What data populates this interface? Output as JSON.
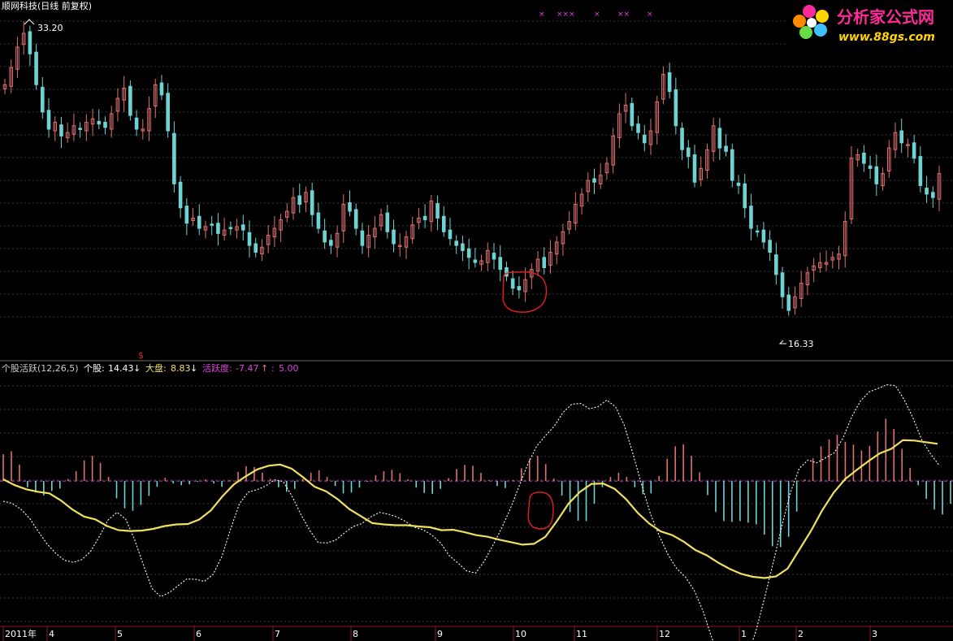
{
  "colors": {
    "background": "#000000",
    "up": "#e07070",
    "down": "#6fd3d3",
    "grid": "#3a3a3a",
    "yellow_line": "#f0e060",
    "dashed_line": "#ffffff",
    "zero_line": "#c040c0",
    "annotation_circle": "#e02020",
    "logo_magenta": "#ff2a9a",
    "logo_yellow": "#ffd400"
  },
  "chart_data": [
    {
      "type": "candlestick",
      "title": "顺网科技(日线 前复权)",
      "high_label": "33.20",
      "low_label": "16.33",
      "markers": [
        "×",
        "×××",
        "×",
        "××",
        "×"
      ],
      "ylim": [
        15,
        34
      ],
      "grid": true,
      "close": [
        30.0,
        31.0,
        32.2,
        33.0,
        31.8,
        30.0,
        28.4,
        27.4,
        27.8,
        27.0,
        27.2,
        27.6,
        27.4,
        27.8,
        28.0,
        27.7,
        27.5,
        28.3,
        29.2,
        29.8,
        28.2,
        27.4,
        27.4,
        28.6,
        30.0,
        29.4,
        27.3,
        24.2,
        22.8,
        21.9,
        22.2,
        21.6,
        21.7,
        21.8,
        21.3,
        21.5,
        21.6,
        21.7,
        21.5,
        20.6,
        20.2,
        20.5,
        21.2,
        21.6,
        22.1,
        22.6,
        23.4,
        23.0,
        23.7,
        22.4,
        21.6,
        20.8,
        20.6,
        21.3,
        23.0,
        22.6,
        21.6,
        20.6,
        21.2,
        21.6,
        22.4,
        21.4,
        20.7,
        20.6,
        21.1,
        21.8,
        22.2,
        22.1,
        23.2,
        22.2,
        21.4,
        21.0,
        20.6,
        20.3,
        19.9,
        19.6,
        19.7,
        20.3,
        19.8,
        19.2,
        18.8,
        18.1,
        18.0,
        18.6,
        19.2,
        19.8,
        19.3,
        20.2,
        20.8,
        21.4,
        22.0,
        23.0,
        23.6,
        24.4,
        24.3,
        24.7,
        25.4,
        27.0,
        28.3,
        28.8,
        27.6,
        27.2,
        26.6,
        27.3,
        29.0,
        30.6,
        29.6,
        27.6,
        26.2,
        25.8,
        24.3,
        25.1,
        26.2,
        27.6,
        26.3,
        26.1,
        24.4,
        24.1,
        22.8,
        21.6,
        21.4,
        20.8,
        20.2,
        18.9,
        17.6,
        16.8,
        17.6,
        18.4,
        19.0,
        19.4,
        19.6,
        19.6,
        19.9,
        20.1,
        22.0,
        25.7,
        25.9,
        25.4,
        25.1,
        24.2,
        24.8,
        26.3,
        27.2,
        26.6,
        26.5,
        25.7,
        24.1,
        23.6,
        23.4,
        24.8
      ],
      "xlabel_ticks": [
        "2011年",
        "4",
        "5",
        "6",
        "7",
        "8",
        "9",
        "10",
        "11",
        "12",
        "1",
        "2",
        "3"
      ]
    },
    {
      "type": "indicator",
      "title": "个股活跃(12,26,5)",
      "legend": [
        {
          "label": "个股:",
          "value": "14.43",
          "arrow": "↓",
          "color": "#ffffff"
        },
        {
          "label": "大盘:",
          "value": "8.83",
          "arrow": "↓",
          "color": "#f0e060"
        },
        {
          "label": "活跃度:",
          "value": "-7.47",
          "arrow": "↑",
          "color": "#e040e0"
        },
        {
          "label": ":",
          "value": "5.00",
          "arrow": "",
          "color": "#e040e0"
        }
      ],
      "signal_glyph": "$",
      "zero_value": 5.0,
      "ylim": [
        -30,
        30
      ],
      "grid": true,
      "active_bars": [
        6.5,
        7.2,
        4.0,
        -1.5,
        -2.8,
        -3.5,
        -2.4,
        -1.8,
        0.5,
        2.4,
        5.0,
        6.1,
        4.4,
        1.0,
        -4.2,
        -6.6,
        -7.2,
        -5.8,
        -3.6,
        -1.4,
        0.8,
        -0.6,
        -1.0,
        -0.8,
        -0.2,
        0.4,
        -0.6,
        -1.4,
        0.2,
        2.2,
        3.6,
        3.4,
        2.0,
        0.5,
        -1.5,
        -2.6,
        -1.9,
        0.5,
        2.0,
        2.6,
        1.0,
        -1.2,
        -3.0,
        -2.8,
        -1.6,
        -0.2,
        1.4,
        2.4,
        2.7,
        1.9,
        0.4,
        -1.6,
        -2.9,
        -3.1,
        -1.9,
        0.7,
        2.9,
        3.9,
        3.7,
        2.0,
        0.2,
        -1.2,
        -1.7,
        0.2,
        3.1,
        5.3,
        6.1,
        4.1,
        0.6,
        -3.5,
        -7.5,
        -9.6,
        -9.7,
        -5.5,
        -1.5,
        1.0,
        2.0,
        1.0,
        -1.5,
        -3.2,
        -3.0,
        1.2,
        5.4,
        8.4,
        8.9,
        6.1,
        2.1,
        -3.4,
        -7.5,
        -9.7,
        -9.9,
        -9.7,
        -10.1,
        -10.5,
        -13.0,
        -15.8,
        -16.0,
        -13.5,
        -7.4,
        0.4,
        5.5,
        8.4,
        10.1,
        11.2,
        9.5,
        8.8,
        7.4,
        8.5,
        12.0,
        15.1,
        12.6,
        7.8,
        3.2,
        -1.0,
        -4.3,
        -6.9,
        -8.1,
        -5.5
      ],
      "individual": [
        0.1,
        -0.4,
        -1.8,
        -4.0,
        -7.2,
        -10.2,
        -12.5,
        -14.2,
        -14.7,
        -14.0,
        -12.0,
        -8.4,
        -4.4,
        -2.6,
        -4.2,
        -9.1,
        -15.2,
        -21.0,
        -23.0,
        -22.0,
        -20.3,
        -18.7,
        -18.8,
        -19.3,
        -17.6,
        -13.2,
        -6.6,
        -0.5,
        2.3,
        2.9,
        3.8,
        5.3,
        4.9,
        1.4,
        -3.0,
        -6.8,
        -9.9,
        -10.0,
        -9.3,
        -7.6,
        -6.0,
        -5.3,
        -3.7,
        -2.6,
        -3.0,
        -3.7,
        -4.8,
        -6.2,
        -6.8,
        -8.1,
        -10.0,
        -13.1,
        -14.9,
        -16.8,
        -17.3,
        -14.4,
        -10.5,
        -6.3,
        -1.6,
        3.9,
        9.2,
        13.5,
        16.0,
        18.3,
        21.6,
        23.6,
        23.8,
        22.5,
        23.0,
        24.6,
        23.0,
        18.5,
        11.5,
        4.0,
        -3.0,
        -8.3,
        -12.8,
        -16.2,
        -18.3,
        -21.5,
        -26.5,
        -33.0,
        -37.8,
        -40.5,
        -40.8,
        -37.8,
        -31.7,
        -23.6,
        -15.0,
        -6.0,
        2.3,
        8.0,
        10.1,
        9.4,
        10.6,
        11.8,
        15.4,
        20.5,
        24.4,
        26.6,
        27.4,
        28.3,
        28.1,
        24.7,
        20.3,
        15.0,
        11.6,
        8.8
      ],
      "market": [
        5.4,
        4.0,
        3.0,
        2.4,
        2.0,
        0.3,
        -1.9,
        -3.6,
        -4.3,
        -5.9,
        -6.9,
        -7.1,
        -7.0,
        -6.6,
        -5.9,
        -5.5,
        -5.4,
        -4.3,
        -2.1,
        1.3,
        4.2,
        6.1,
        7.8,
        8.7,
        9.0,
        8.0,
        5.9,
        3.6,
        2.5,
        0.6,
        -1.8,
        -3.5,
        -5.2,
        -5.5,
        -5.7,
        -5.7,
        -6.0,
        -6.2,
        -6.9,
        -6.8,
        -7.4,
        -8.1,
        -8.5,
        -9.2,
        -9.8,
        -10.4,
        -10.2,
        -8.5,
        -4.7,
        -0.5,
        2.4,
        4.3,
        4.4,
        3.1,
        0.6,
        -2.7,
        -5.3,
        -7.2,
        -8.1,
        -9.7,
        -11.7,
        -13.0,
        -14.8,
        -16.3,
        -17.5,
        -18.2,
        -18.5,
        -18.1,
        -16.2,
        -11.7,
        -7.2,
        -2.1,
        2.2,
        5.5,
        7.7,
        9.8,
        11.7,
        12.8,
        14.9,
        14.8,
        14.4,
        14.0
      ],
      "individual_style": "dashed",
      "market_style": "solid"
    }
  ],
  "logo": {
    "text": "分析家公式网",
    "url_text": "www.88gs.com"
  }
}
